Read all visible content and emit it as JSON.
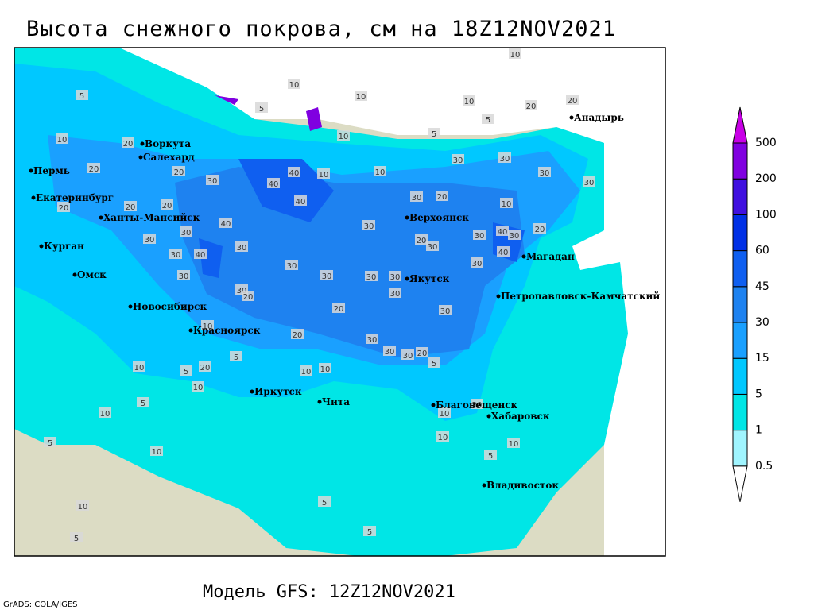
{
  "header": {
    "title": "Высота снежного покрова, см на 18Z12NOV2021"
  },
  "footer": {
    "model": "Модель GFS: 12Z12NOV2021",
    "credit": "GrADS: COLA/IGES"
  },
  "cities": [
    "Воркута",
    "Салехард",
    "Пермь",
    "Екатеринбург",
    "Ханты-Мансийск",
    "Курган",
    "Омск",
    "Новосибирск",
    "Красноярск",
    "Иркутск",
    "Чита",
    "Верхоянск",
    "Якутск",
    "Магадан",
    "Петропавловск-Камчатский",
    "Анадырь",
    "Благовещенск",
    "Хабаровск",
    "Владивосток"
  ],
  "contour_labels": [
    10,
    10,
    10,
    10,
    5,
    5,
    5,
    5,
    20,
    20,
    10,
    20,
    10,
    20,
    20,
    30,
    40,
    40,
    10,
    10,
    30,
    30,
    30,
    30,
    40,
    30,
    20,
    10,
    20,
    20,
    20,
    40,
    30,
    30,
    20,
    30,
    30,
    40,
    30,
    20,
    30,
    30,
    30,
    40,
    40,
    30,
    30,
    30,
    30,
    30,
    30,
    30,
    20,
    30,
    20,
    30,
    10,
    20,
    30,
    30,
    30,
    20,
    5,
    5,
    10,
    5,
    20,
    10,
    10,
    10,
    5,
    10,
    5,
    10,
    20,
    10,
    5,
    10,
    10,
    5,
    5,
    5,
    10
  ],
  "legend": {
    "levels": [
      0.5,
      1,
      5,
      15,
      30,
      45,
      60,
      100,
      200,
      500
    ],
    "colors": [
      "#ffffff",
      "#a0f5ff",
      "#00e6e6",
      "#00c8ff",
      "#1aa0ff",
      "#1e82f0",
      "#0f5ff0",
      "#0030e6",
      "#4010e0",
      "#8000e0",
      "#c800e6"
    ]
  }
}
